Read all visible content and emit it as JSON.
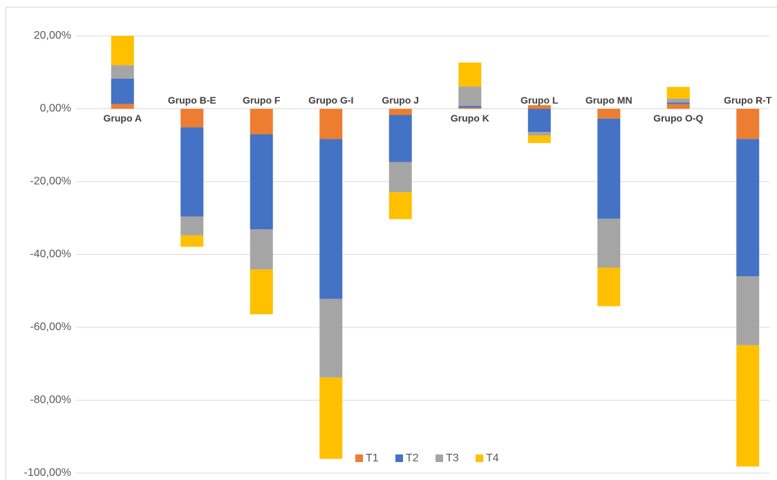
{
  "chart_data": {
    "type": "stacked_bar",
    "categories": [
      "Grupo A",
      "Grupo B-E",
      "Grupo F",
      "Grupo G-I",
      "Grupo J",
      "Grupo K",
      "Grupo L",
      "Grupo MN",
      "Grupo O-Q",
      "Grupo R-T"
    ],
    "series": [
      {
        "name": "T1",
        "color": "#ed7d31",
        "values": [
          1.3,
          -5.1,
          -7.0,
          -8.3,
          -1.7,
          0.3,
          1.0,
          -2.7,
          1.3,
          -8.3
        ]
      },
      {
        "name": "T2",
        "color": "#4472c4",
        "values": [
          7.0,
          -24.5,
          -26.1,
          -43.9,
          -12.9,
          0.5,
          -6.4,
          -27.5,
          0.4,
          -37.7
        ]
      },
      {
        "name": "T3",
        "color": "#a5a5a5",
        "values": [
          3.7,
          -5.1,
          -11.0,
          -21.6,
          -8.3,
          5.3,
          -0.9,
          -13.4,
          1.1,
          -18.9
        ]
      },
      {
        "name": "T4",
        "color": "#ffc000",
        "values": [
          8.0,
          -3.2,
          -12.3,
          -22.3,
          -7.4,
          6.6,
          -2.1,
          -10.6,
          3.2,
          -33.3
        ]
      }
    ],
    "ylim": [
      -100,
      20
    ],
    "yticks": [
      {
        "value": -100,
        "label": "-100,00%"
      },
      {
        "value": -80,
        "label": "-80,00%"
      },
      {
        "value": -60,
        "label": "-60,00%"
      },
      {
        "value": -40,
        "label": "-40,00%"
      },
      {
        "value": -20,
        "label": "-20,00%"
      },
      {
        "value": 0,
        "label": "0,00%"
      },
      {
        "value": 20,
        "label": "20,00%"
      }
    ],
    "grid": true,
    "legend": "bottom"
  }
}
